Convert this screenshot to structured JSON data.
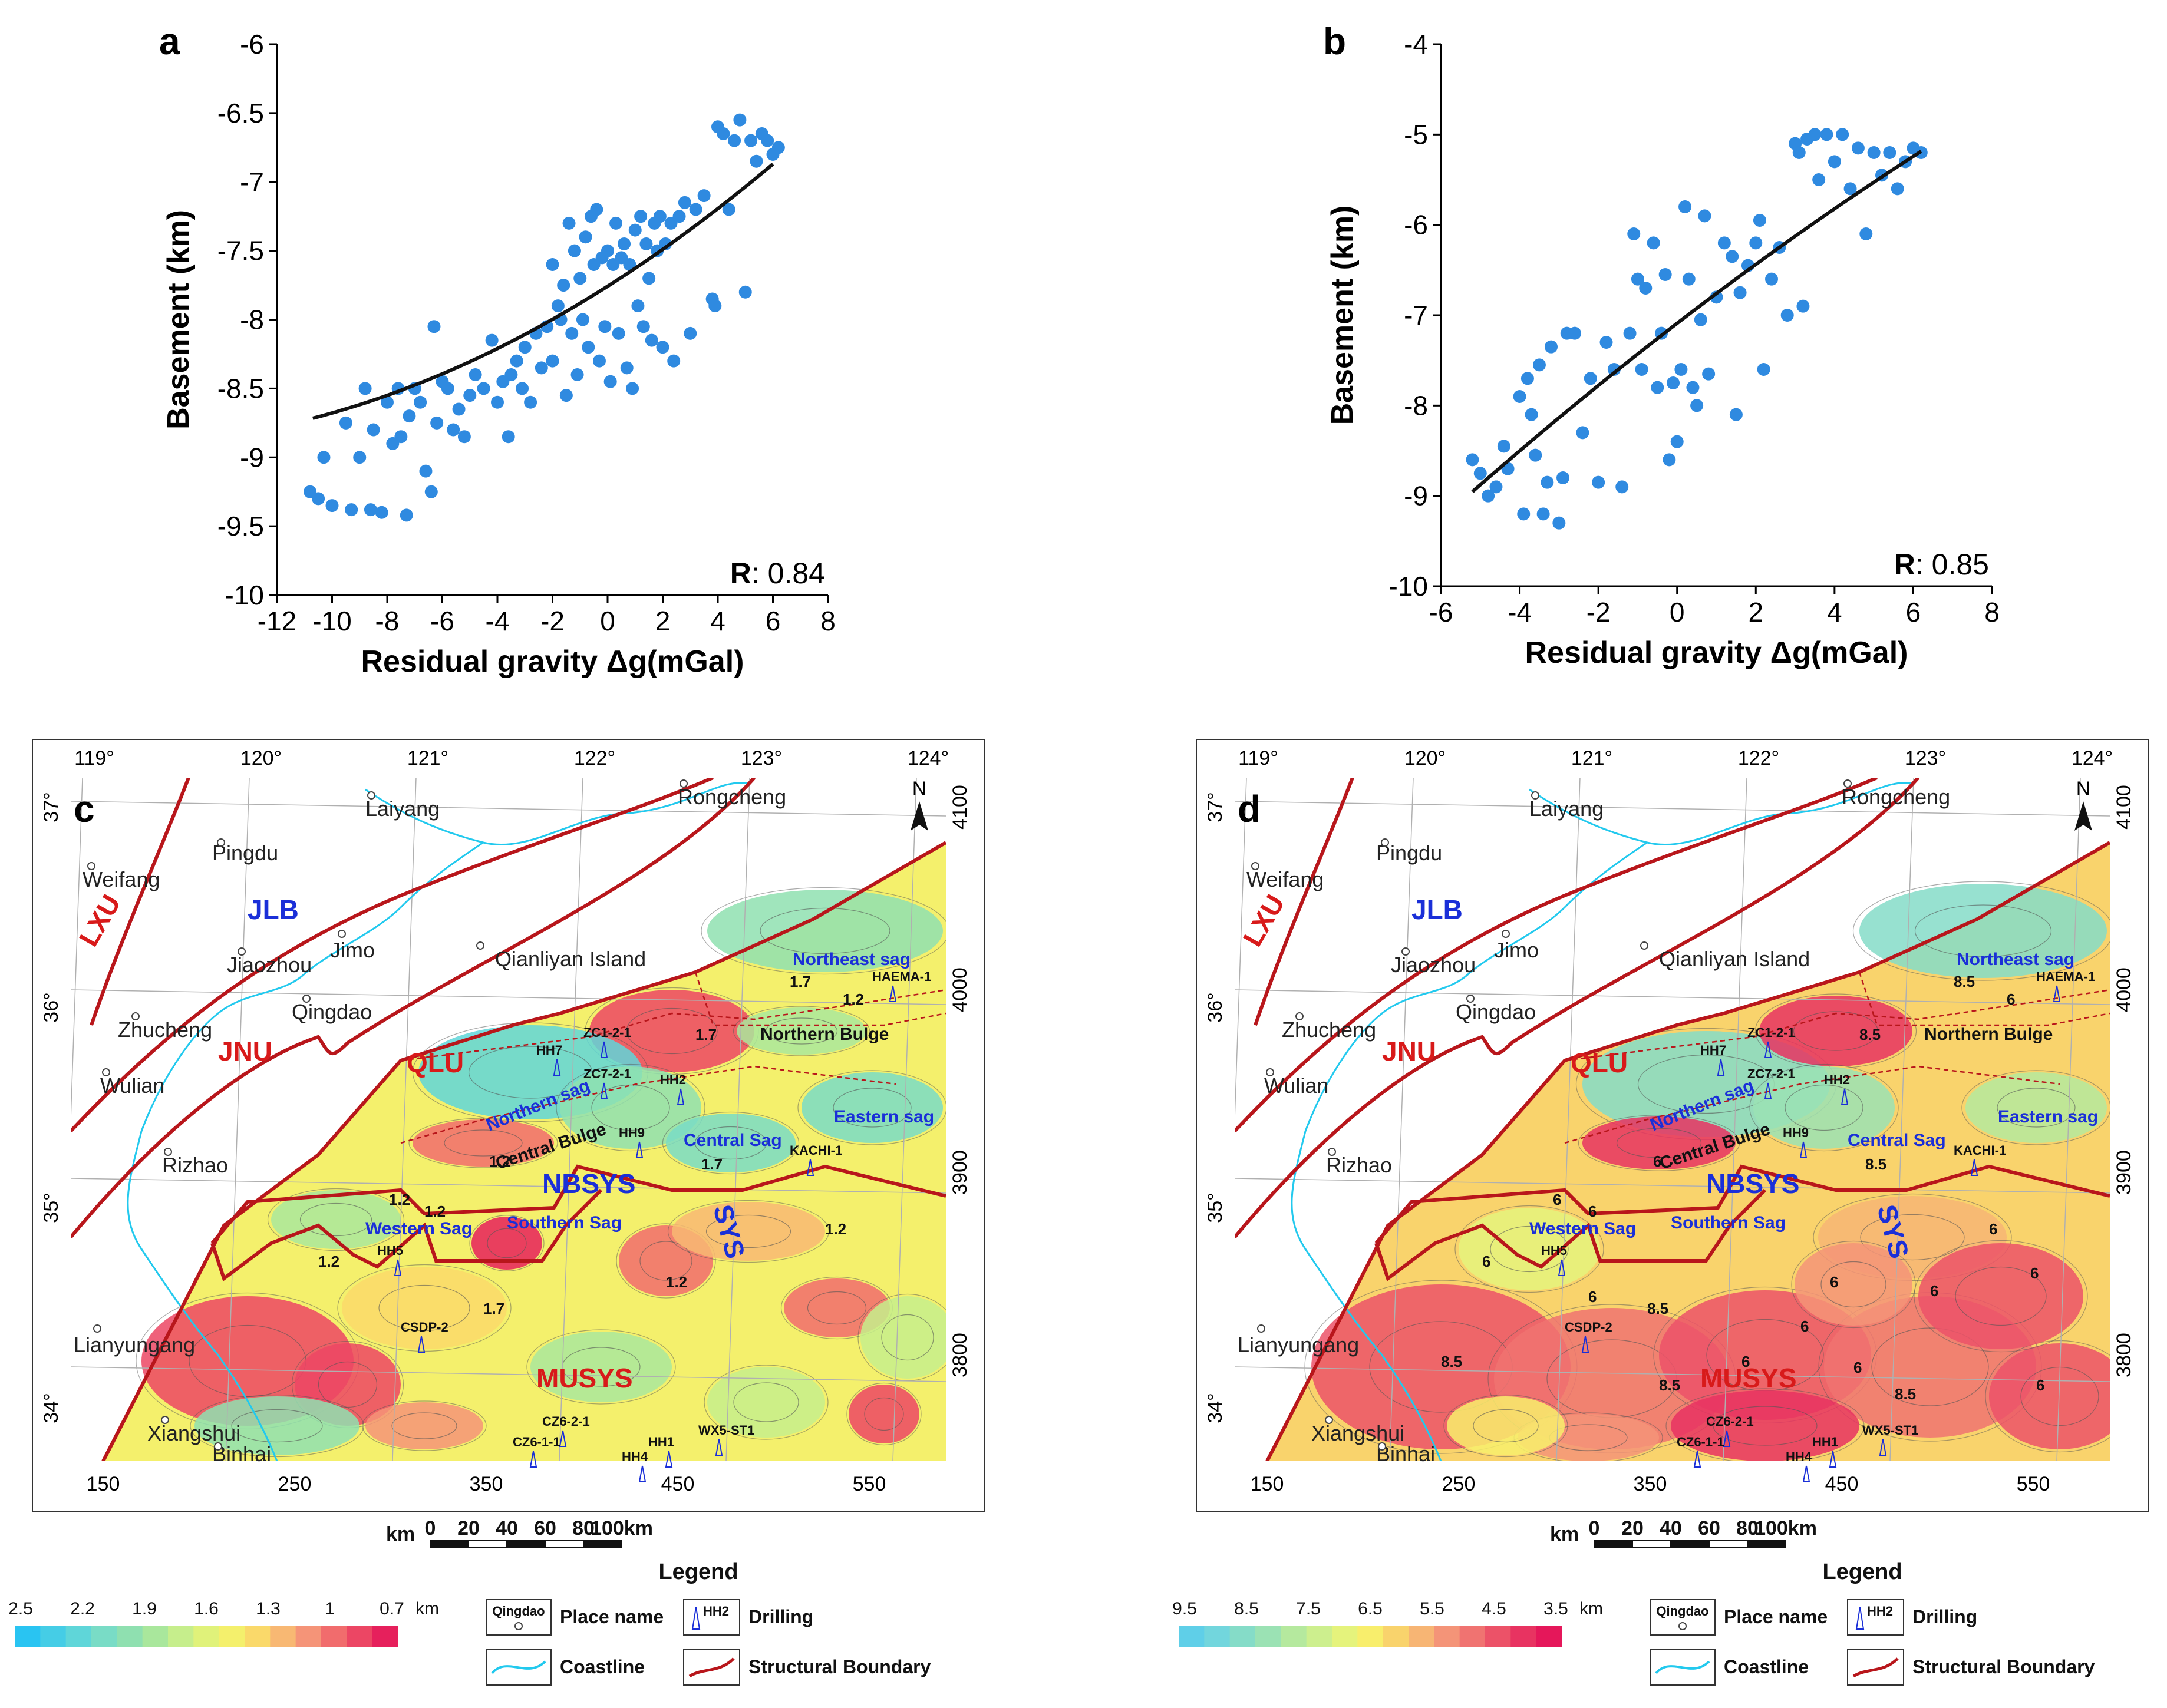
{
  "chart_data": [
    {
      "panel": "a",
      "type": "scatter",
      "xlabel": "Residual gravity Δg(mGal)",
      "ylabel": "Basement (km)",
      "xlim": [
        -12,
        8
      ],
      "ylim": [
        -10,
        -6
      ],
      "xticks": [
        "-12",
        "-10",
        "-8",
        "-6",
        "-4",
        "-2",
        "0",
        "2",
        "4",
        "6",
        "8"
      ],
      "yticks": [
        "-6",
        "-6.5",
        "-7",
        "-7.5",
        "-8",
        "-8.5",
        "-9",
        "-9.5",
        "-10"
      ],
      "r_label": "R",
      "r_value": ": 0.84",
      "point_color": "#2f8ae0",
      "fit_color": "#111111",
      "fit": {
        "a": 0.0035,
        "b": 0.127,
        "c": -7.758,
        "xrange": [
          -10.7,
          6.0
        ]
      },
      "points": [
        [
          -10.8,
          -9.25
        ],
        [
          -10.5,
          -9.3
        ],
        [
          -10.3,
          -9.0
        ],
        [
          -10.0,
          -9.35
        ],
        [
          -9.5,
          -8.75
        ],
        [
          -9.3,
          -9.38
        ],
        [
          -9.0,
          -9.0
        ],
        [
          -8.8,
          -8.5
        ],
        [
          -8.6,
          -9.38
        ],
        [
          -8.5,
          -8.8
        ],
        [
          -8.2,
          -9.4
        ],
        [
          -8.0,
          -8.6
        ],
        [
          -7.8,
          -8.9
        ],
        [
          -7.6,
          -8.5
        ],
        [
          -7.5,
          -8.85
        ],
        [
          -7.3,
          -9.42
        ],
        [
          -7.2,
          -8.7
        ],
        [
          -7.0,
          -8.5
        ],
        [
          -6.8,
          -8.6
        ],
        [
          -6.6,
          -9.1
        ],
        [
          -6.4,
          -9.25
        ],
        [
          -6.3,
          -8.05
        ],
        [
          -6.2,
          -8.75
        ],
        [
          -6.0,
          -8.45
        ],
        [
          -5.8,
          -8.5
        ],
        [
          -5.6,
          -8.8
        ],
        [
          -5.4,
          -8.65
        ],
        [
          -5.2,
          -8.85
        ],
        [
          -5.0,
          -8.55
        ],
        [
          -4.8,
          -8.4
        ],
        [
          -4.5,
          -8.5
        ],
        [
          -4.2,
          -8.15
        ],
        [
          -4.0,
          -8.6
        ],
        [
          -3.8,
          -8.45
        ],
        [
          -3.6,
          -8.85
        ],
        [
          -3.5,
          -8.4
        ],
        [
          -3.3,
          -8.3
        ],
        [
          -3.1,
          -8.5
        ],
        [
          -3.0,
          -8.2
        ],
        [
          -2.8,
          -8.6
        ],
        [
          -2.6,
          -8.1
        ],
        [
          -2.4,
          -8.35
        ],
        [
          -2.2,
          -8.05
        ],
        [
          -2.0,
          -8.3
        ],
        [
          -2.0,
          -7.6
        ],
        [
          -1.8,
          -7.9
        ],
        [
          -1.7,
          -8.0
        ],
        [
          -1.6,
          -7.75
        ],
        [
          -1.5,
          -8.55
        ],
        [
          -1.4,
          -7.3
        ],
        [
          -1.3,
          -8.1
        ],
        [
          -1.2,
          -7.5
        ],
        [
          -1.1,
          -8.4
        ],
        [
          -1.0,
          -7.7
        ],
        [
          -0.9,
          -8.0
        ],
        [
          -0.8,
          -7.4
        ],
        [
          -0.7,
          -8.2
        ],
        [
          -0.6,
          -7.25
        ],
        [
          -0.5,
          -7.6
        ],
        [
          -0.4,
          -7.2
        ],
        [
          -0.3,
          -8.3
        ],
        [
          -0.2,
          -7.55
        ],
        [
          -0.1,
          -8.05
        ],
        [
          0.0,
          -7.5
        ],
        [
          0.1,
          -8.45
        ],
        [
          0.2,
          -7.6
        ],
        [
          0.3,
          -7.3
        ],
        [
          0.4,
          -8.1
        ],
        [
          0.5,
          -7.55
        ],
        [
          0.6,
          -7.45
        ],
        [
          0.7,
          -8.35
        ],
        [
          0.8,
          -7.6
        ],
        [
          0.9,
          -8.5
        ],
        [
          1.0,
          -7.35
        ],
        [
          1.1,
          -7.9
        ],
        [
          1.2,
          -7.25
        ],
        [
          1.3,
          -8.05
        ],
        [
          1.4,
          -7.45
        ],
        [
          1.5,
          -7.7
        ],
        [
          1.6,
          -8.15
        ],
        [
          1.7,
          -7.3
        ],
        [
          1.8,
          -7.5
        ],
        [
          1.9,
          -7.25
        ],
        [
          2.0,
          -8.2
        ],
        [
          2.1,
          -7.45
        ],
        [
          2.3,
          -7.3
        ],
        [
          2.4,
          -8.3
        ],
        [
          2.6,
          -7.25
        ],
        [
          2.8,
          -7.15
        ],
        [
          3.0,
          -8.1
        ],
        [
          3.2,
          -7.2
        ],
        [
          3.5,
          -7.1
        ],
        [
          3.8,
          -7.85
        ],
        [
          3.9,
          -7.9
        ],
        [
          4.0,
          -6.6
        ],
        [
          4.2,
          -6.65
        ],
        [
          4.4,
          -7.2
        ],
        [
          4.6,
          -6.7
        ],
        [
          4.8,
          -6.55
        ],
        [
          5.0,
          -7.8
        ],
        [
          5.2,
          -6.7
        ],
        [
          5.4,
          -6.85
        ],
        [
          5.6,
          -6.65
        ],
        [
          5.8,
          -6.7
        ],
        [
          6.0,
          -6.8
        ],
        [
          6.2,
          -6.75
        ]
      ]
    },
    {
      "panel": "b",
      "type": "scatter",
      "xlabel": "Residual gravity Δg(mGal)",
      "ylabel": "Basement (km)",
      "xlim": [
        -6,
        8
      ],
      "ylim": [
        -10,
        -4
      ],
      "xticks": [
        "-6",
        "-4",
        "-2",
        "0",
        "2",
        "4",
        "6",
        "8"
      ],
      "yticks": [
        "-4",
        "-5",
        "-6",
        "-7",
        "-8",
        "-9",
        "-10"
      ],
      "r_label": "R",
      "r_value": ": 0.85",
      "point_color": "#2f8ae0",
      "fit_color": "#111111",
      "fit": {
        "a": -0.0045,
        "b": 0.335,
        "c": -7.09,
        "xrange": [
          -5.2,
          6.2
        ]
      },
      "points": [
        [
          -5.2,
          -8.6
        ],
        [
          -5.0,
          -8.75
        ],
        [
          -4.8,
          -9.0
        ],
        [
          -4.6,
          -8.9
        ],
        [
          -4.4,
          -8.45
        ],
        [
          -4.3,
          -8.7
        ],
        [
          -4.0,
          -7.9
        ],
        [
          -3.9,
          -9.2
        ],
        [
          -3.8,
          -7.7
        ],
        [
          -3.7,
          -8.1
        ],
        [
          -3.6,
          -8.55
        ],
        [
          -3.5,
          -7.55
        ],
        [
          -3.4,
          -9.2
        ],
        [
          -3.3,
          -8.85
        ],
        [
          -3.2,
          -7.35
        ],
        [
          -3.0,
          -9.3
        ],
        [
          -2.9,
          -8.8
        ],
        [
          -2.8,
          -7.2
        ],
        [
          -2.6,
          -7.2
        ],
        [
          -2.4,
          -8.3
        ],
        [
          -2.2,
          -7.7
        ],
        [
          -2.0,
          -8.85
        ],
        [
          -1.8,
          -7.3
        ],
        [
          -1.6,
          -7.6
        ],
        [
          -1.4,
          -8.9
        ],
        [
          -1.2,
          -7.2
        ],
        [
          -1.1,
          -6.1
        ],
        [
          -1.0,
          -6.6
        ],
        [
          -0.9,
          -7.6
        ],
        [
          -0.8,
          -6.7
        ],
        [
          -0.6,
          -6.2
        ],
        [
          -0.5,
          -7.8
        ],
        [
          -0.4,
          -7.2
        ],
        [
          -0.3,
          -6.55
        ],
        [
          -0.2,
          -8.6
        ],
        [
          -0.1,
          -7.75
        ],
        [
          0.0,
          -8.4
        ],
        [
          0.1,
          -7.6
        ],
        [
          0.2,
          -5.8
        ],
        [
          0.3,
          -6.6
        ],
        [
          0.4,
          -7.8
        ],
        [
          0.5,
          -8.0
        ],
        [
          0.6,
          -7.05
        ],
        [
          0.7,
          -5.9
        ],
        [
          0.8,
          -7.65
        ],
        [
          1.0,
          -6.8
        ],
        [
          1.2,
          -6.2
        ],
        [
          1.4,
          -6.35
        ],
        [
          1.5,
          -8.1
        ],
        [
          1.6,
          -6.75
        ],
        [
          1.8,
          -6.45
        ],
        [
          2.0,
          -6.2
        ],
        [
          2.1,
          -5.95
        ],
        [
          2.2,
          -7.6
        ],
        [
          2.4,
          -6.6
        ],
        [
          2.6,
          -6.25
        ],
        [
          2.8,
          -7.0
        ],
        [
          3.0,
          -5.1
        ],
        [
          3.1,
          -5.2
        ],
        [
          3.2,
          -6.9
        ],
        [
          3.3,
          -5.05
        ],
        [
          3.5,
          -5.0
        ],
        [
          3.6,
          -5.5
        ],
        [
          3.8,
          -5.0
        ],
        [
          4.0,
          -5.3
        ],
        [
          4.2,
          -5.0
        ],
        [
          4.4,
          -5.6
        ],
        [
          4.6,
          -5.15
        ],
        [
          4.8,
          -6.1
        ],
        [
          5.0,
          -5.2
        ],
        [
          5.2,
          -5.45
        ],
        [
          5.4,
          -5.2
        ],
        [
          5.6,
          -5.6
        ],
        [
          5.8,
          -5.3
        ],
        [
          6.0,
          -5.15
        ],
        [
          6.2,
          -5.2
        ]
      ]
    }
  ],
  "maps": [
    {
      "panel": "c",
      "lon_labels": [
        "119°",
        "120°",
        "121°",
        "122°",
        "123°",
        "124°"
      ],
      "lat_labels": [
        "37°",
        "36°",
        "35°",
        "34°"
      ],
      "x_km_labels": [
        "150",
        "250",
        "350",
        "450",
        "550"
      ],
      "y_km_labels": [
        "4100",
        "4000",
        "3900",
        "3800"
      ],
      "places": [
        "Laiyang",
        "Rongcheng",
        "Pingdu",
        "Weifang",
        "JLB",
        "Jimo",
        "Jiaozhou",
        "Qianliyan Island",
        "Qingdao",
        "Zhucheng",
        "JNU",
        "QLU",
        "Wulian",
        "Rizhao",
        "Lianyungang",
        "Xiangshui",
        "Binhai",
        "LXU"
      ],
      "units_red": [
        "LXU",
        "JNU",
        "QLU",
        "MUSYS"
      ],
      "units_blue": [
        "JLB",
        "NBSYS",
        "SYS"
      ],
      "sub_blue": [
        "Northeast sag",
        "Northern sag",
        "Central Sag",
        "Eastern sag",
        "Western Sag",
        "Southern Sag"
      ],
      "sub_black": [
        "Northern Bulge",
        "Central Bulge"
      ],
      "wells": [
        "HAEMA-1",
        "ZC1-2-1",
        "HH7",
        "ZC7-2-1",
        "HH2",
        "HH9",
        "KACHI-1",
        "HH5",
        "CSDP-2",
        "CZ6-2-1",
        "CZ6-1-1",
        "HH4",
        "HH1",
        "WX5-ST1"
      ],
      "contour_labels": [
        "1.7",
        "1.2",
        "1.7",
        "1.2",
        "1.7",
        "1.2",
        "1.2",
        "1.2",
        "1.7",
        "1.2",
        "1.2"
      ],
      "colorbar": {
        "ticks": [
          "2.5",
          "2.2",
          "1.9",
          "1.6",
          "1.3",
          "1",
          "0.7"
        ],
        "unit": "km",
        "colors": [
          "#29c4f2",
          "#45cde6",
          "#5fd6d9",
          "#79dcc6",
          "#8fe0b0",
          "#a9e79c",
          "#c6ee8c",
          "#e0f27a",
          "#f4f06c",
          "#fad96a",
          "#f8b873",
          "#f59478",
          "#f16c6d",
          "#ec4664",
          "#e6205c"
        ]
      }
    },
    {
      "panel": "d",
      "lon_labels": [
        "119°",
        "120°",
        "121°",
        "122°",
        "123°",
        "124°"
      ],
      "lat_labels": [
        "37°",
        "36°",
        "35°",
        "34°"
      ],
      "x_km_labels": [
        "150",
        "250",
        "350",
        "450",
        "550"
      ],
      "y_km_labels": [
        "4100",
        "4000",
        "3900",
        "3800"
      ],
      "wells": [
        "HAEMA-1",
        "ZC1-2-1",
        "HH7",
        "ZC7-2-1",
        "HH2",
        "HH9",
        "KACHI-1",
        "HH5",
        "CSDP-2",
        "CZ6-2-1",
        "CZ6-1-1",
        "HH4",
        "HH1",
        "WX5-ST1"
      ],
      "contour_labels": [
        "8.5",
        "6",
        "8.5",
        "6",
        "8.5",
        "6",
        "6",
        "6",
        "8.5",
        "6",
        "6",
        "6",
        "8.5",
        "6",
        "6",
        "6",
        "6",
        "8.5",
        "8.5",
        "6",
        "6"
      ],
      "colorbar": {
        "ticks": [
          "9.5",
          "8.5",
          "7.5",
          "6.5",
          "5.5",
          "4.5",
          "3.5"
        ],
        "unit": "km",
        "colors": [
          "#5fcfe8",
          "#72d6dd",
          "#85dcc8",
          "#9be2b4",
          "#b5e99e",
          "#cdef8e",
          "#e5f37c",
          "#f8ee6c",
          "#f9d36c",
          "#f7b574",
          "#f49478",
          "#f07371",
          "#ec5268",
          "#e83361",
          "#e5175a"
        ]
      }
    }
  ],
  "panel_labels": [
    "a",
    "b",
    "c",
    "d"
  ],
  "scalebar": {
    "unit": "km",
    "ticks": [
      "0",
      "20",
      "40",
      "60",
      "80",
      "100km"
    ]
  },
  "legend": {
    "title": "Legend",
    "place_sample": "Qingdao",
    "place_name": "Place name",
    "drill_sample": "HH2",
    "drilling": "Drilling",
    "coastline": "Coastline",
    "boundary": "Structural Boundary"
  },
  "colors": {
    "coast": "#22c9ee",
    "boundary": "#b8161b",
    "point": "#2f8ae0"
  }
}
